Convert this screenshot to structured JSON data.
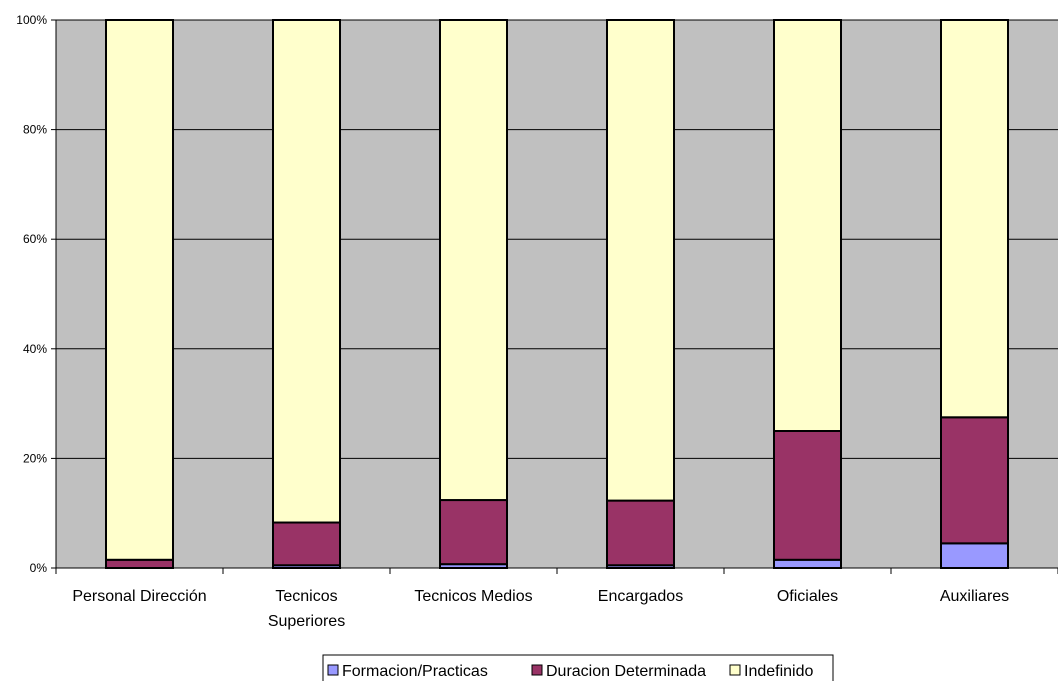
{
  "chart_data": {
    "type": "bar",
    "stacked": "percent",
    "categories": [
      "Personal Dirección",
      "Tecnicos Superiores",
      "Tecnicos Medios",
      "Encargados",
      "Oficiales",
      "Auxiliares"
    ],
    "category_lines": [
      [
        "Personal Dirección"
      ],
      [
        "Tecnicos",
        "Superiores"
      ],
      [
        "Tecnicos Medios"
      ],
      [
        "Encargados"
      ],
      [
        "Oficiales"
      ],
      [
        "Auxiliares"
      ]
    ],
    "series": [
      {
        "name": "Formacion/Practicas",
        "color": "#9999FF",
        "values": [
          0.0,
          0.5,
          0.7,
          0.5,
          1.5,
          4.5
        ]
      },
      {
        "name": "Duracion Determinada",
        "color": "#993366",
        "values": [
          1.5,
          7.8,
          11.7,
          11.8,
          23.5,
          23.0
        ]
      },
      {
        "name": "Indefinido",
        "color": "#FFFFCC",
        "values": [
          98.5,
          91.7,
          87.6,
          87.7,
          75.0,
          72.5
        ]
      }
    ],
    "ylim": [
      0,
      100
    ],
    "yticks": [
      "0%",
      "20%",
      "40%",
      "60%",
      "80%",
      "100%"
    ],
    "grid": true,
    "plot_background": "#C0C0C0",
    "legend_position": "bottom"
  }
}
